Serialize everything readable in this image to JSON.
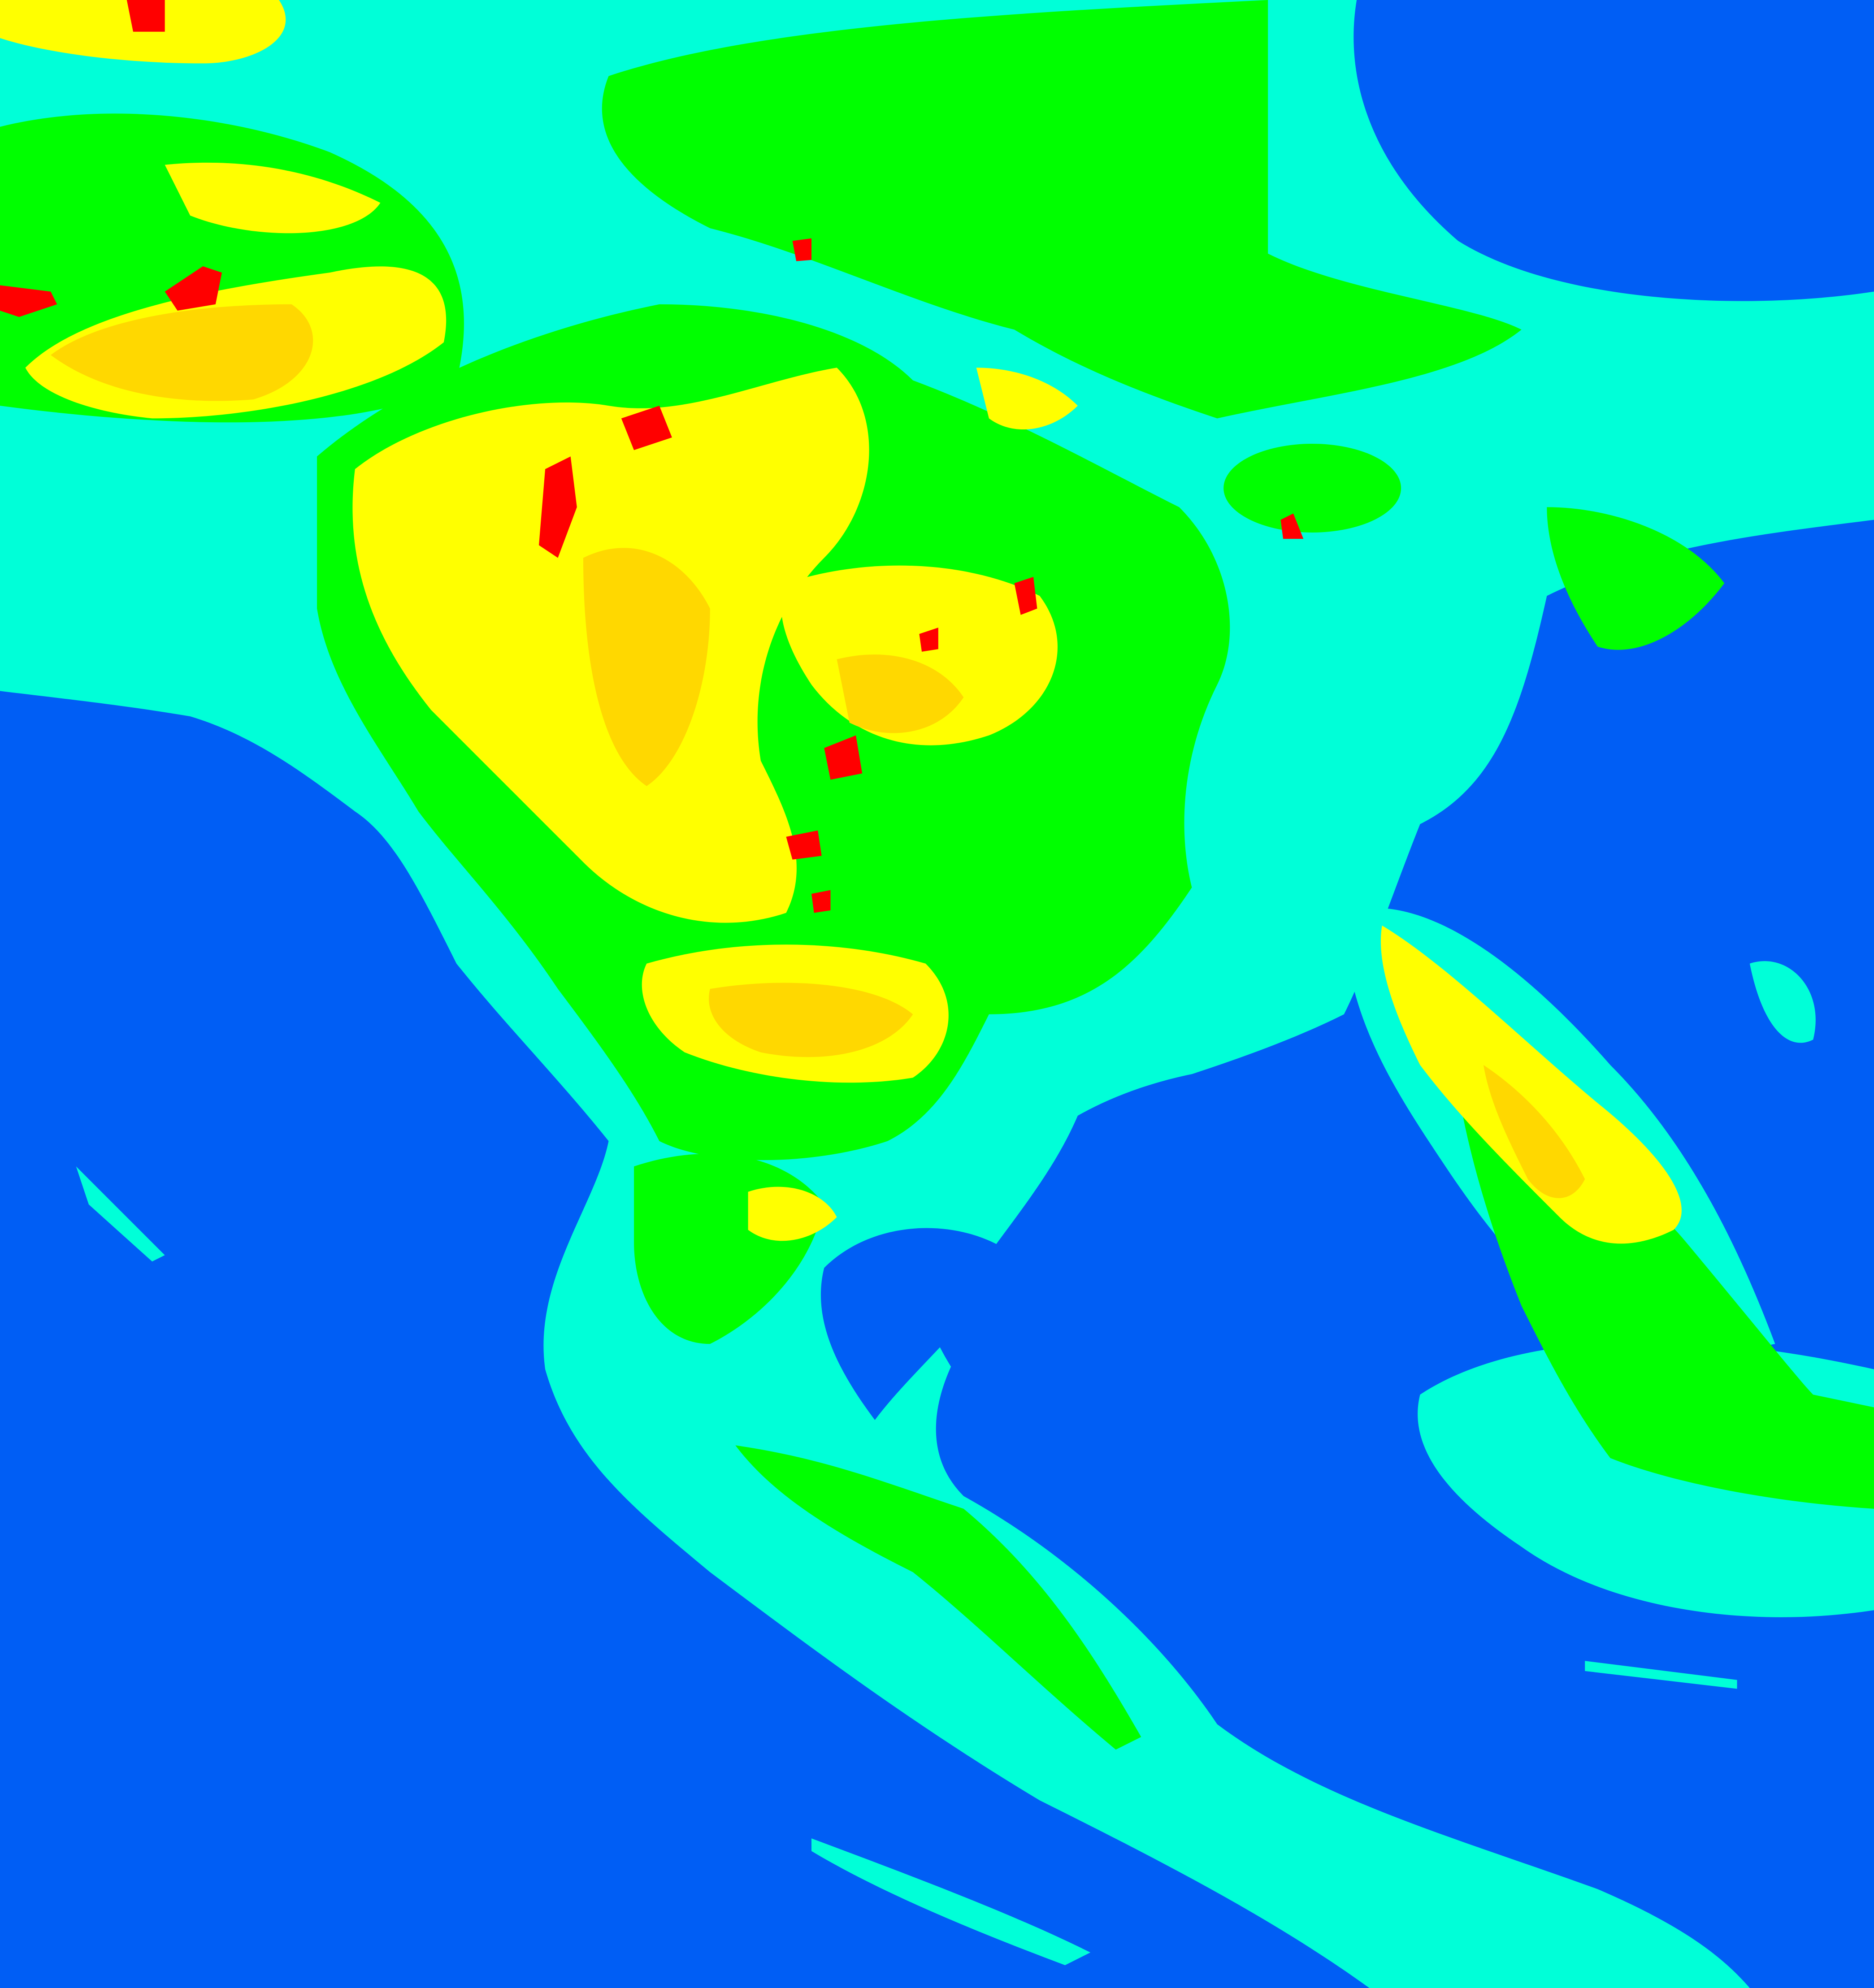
{
  "map": {
    "palette": {
      "class_1": "#005ef5",
      "class_2": "#00ffd8",
      "class_3": "#00ff00",
      "class_4": "#ffff00",
      "class_5": "#ffd800",
      "class_6": "#ff0000"
    }
  }
}
